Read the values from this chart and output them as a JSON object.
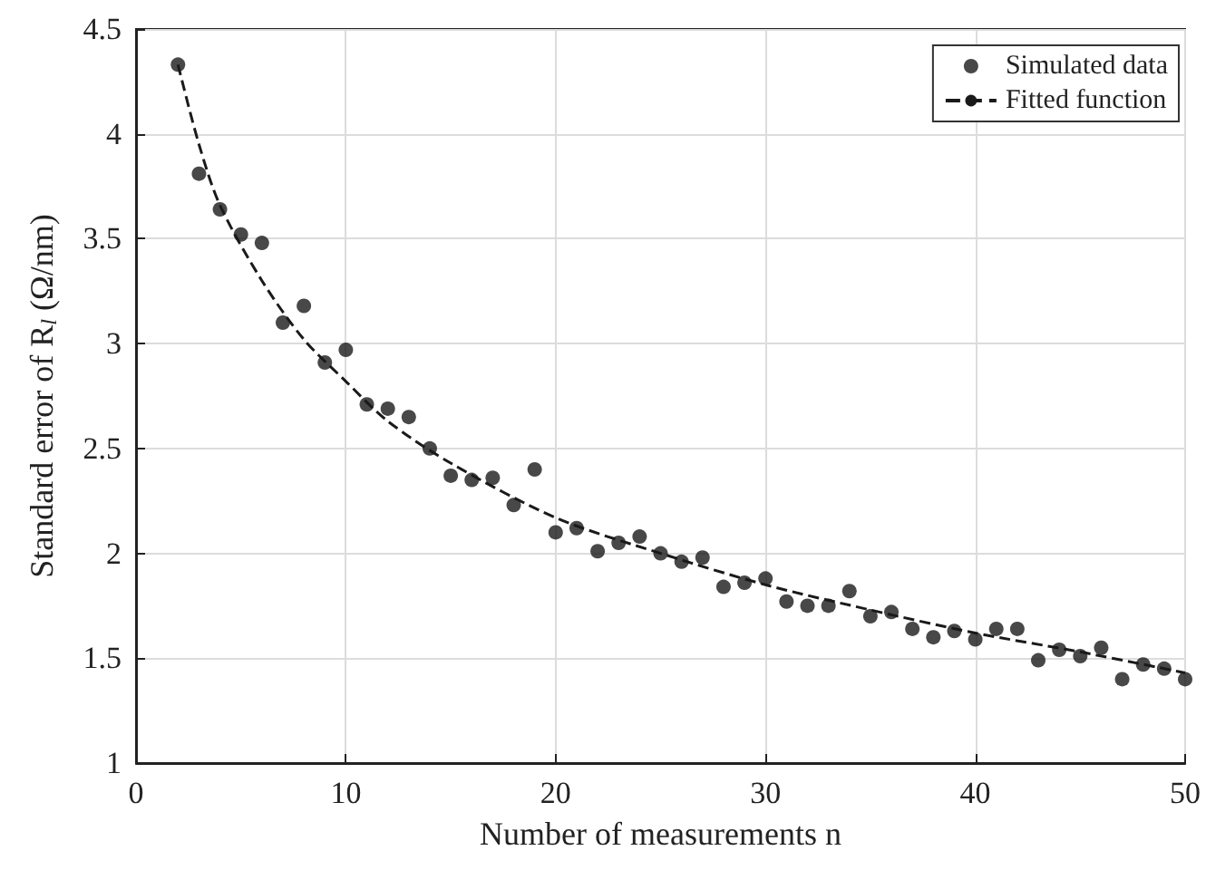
{
  "chart_data": {
    "type": "scatter",
    "xlabel": "Number of measurements n",
    "ylabel": "Standard error of R$_{l}$ (Ω/nm)",
    "xlim": [
      0,
      50
    ],
    "xticks": [
      0,
      10,
      20,
      30,
      40,
      50
    ],
    "ylim": [
      1,
      4.5
    ],
    "yticks": [
      1,
      1.5,
      2,
      2.5,
      3,
      3.5,
      4,
      4.5
    ],
    "grid": true,
    "legend": "top right",
    "series": [
      {
        "name": "Simulated data",
        "marker": "circle",
        "color": "#1a1a1a",
        "x": [
          2,
          3,
          4,
          5,
          6,
          7,
          8,
          9,
          10,
          11,
          12,
          13,
          14,
          15,
          16,
          17,
          18,
          19,
          20,
          21,
          22,
          23,
          24,
          25,
          26,
          27,
          28,
          29,
          30,
          31,
          32,
          33,
          34,
          35,
          36,
          37,
          38,
          39,
          40,
          41,
          42,
          43,
          44,
          45,
          46,
          47,
          48,
          49,
          50
        ],
        "values": [
          4.33,
          3.81,
          3.64,
          3.52,
          3.48,
          3.1,
          3.18,
          2.91,
          2.97,
          2.71,
          2.69,
          2.65,
          2.5,
          2.37,
          2.35,
          2.36,
          2.23,
          2.4,
          2.1,
          2.12,
          2.01,
          2.05,
          2.08,
          2.0,
          1.96,
          1.98,
          1.84,
          1.86,
          1.88,
          1.77,
          1.75,
          1.75,
          1.82,
          1.7,
          1.72,
          1.64,
          1.6,
          1.63,
          1.59,
          1.64,
          1.64,
          1.49,
          1.54,
          1.51,
          1.55,
          1.4,
          1.47,
          1.45,
          1.4
        ]
      },
      {
        "name": "Fitted function",
        "type": "line",
        "marker": "none",
        "line_style": "dashed",
        "color": "#1a1a1a",
        "x": [
          2,
          3,
          4,
          6,
          8,
          10,
          12,
          15,
          20,
          25,
          30,
          35,
          40,
          45,
          50
        ],
        "values": [
          4.33,
          3.95,
          3.66,
          3.3,
          3.02,
          2.82,
          2.63,
          2.43,
          2.17,
          2.0,
          1.85,
          1.73,
          1.62,
          1.53,
          1.43
        ]
      }
    ]
  }
}
